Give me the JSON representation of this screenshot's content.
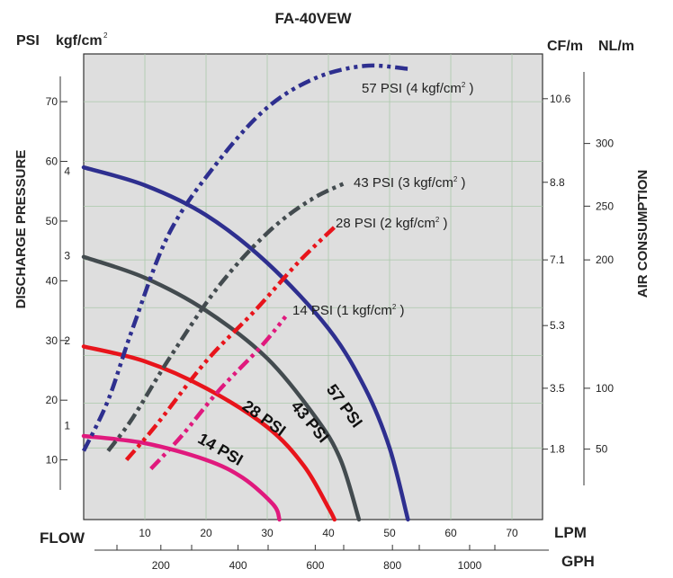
{
  "chart_data": {
    "type": "line",
    "title": "FA-40VEW",
    "left_axis": {
      "title": "DISCHARGE PRESSURE",
      "unit_psi": "PSI",
      "unit_kgf": "kgf/cm",
      "unit_kgf_sup": "2",
      "psi_ticks": [
        "10",
        "20",
        "30",
        "40",
        "50",
        "60",
        "70"
      ],
      "kgf_ticks": [
        "1",
        "2",
        "3",
        "4"
      ],
      "range_psi": [
        0,
        78
      ]
    },
    "right_axis": {
      "title": "AIR CONSUMPTION",
      "unit_cfm": "CF/m",
      "unit_nlm": "NL/m",
      "cfm_ticks": [
        "1.8",
        "3.5",
        "5.3",
        "7.1",
        "8.8",
        "10.6"
      ],
      "nlm_ticks": [
        "50",
        "100",
        "200",
        "250",
        "300"
      ]
    },
    "x_axis": {
      "label_left": "FLOW",
      "unit_lpm": "LPM",
      "unit_gph": "GPH",
      "lpm_ticks": [
        "10",
        "20",
        "30",
        "40",
        "50",
        "60",
        "70"
      ],
      "gph_ticks": [
        "200",
        "400",
        "600",
        "800",
        "1000"
      ],
      "range_lpm": [
        0,
        75
      ]
    },
    "flow_curves": [
      {
        "name": "57 PSI",
        "color": "#2e2f8f",
        "label": "57 PSI",
        "points": [
          [
            0,
            59
          ],
          [
            10,
            56
          ],
          [
            20,
            51
          ],
          [
            30,
            43
          ],
          [
            40,
            32
          ],
          [
            46,
            22
          ],
          [
            50,
            12
          ],
          [
            53,
            0
          ]
        ]
      },
      {
        "name": "43 PSI",
        "color": "#434b4f",
        "label": "43 PSI",
        "points": [
          [
            0,
            44
          ],
          [
            10,
            40.5
          ],
          [
            20,
            35
          ],
          [
            30,
            27
          ],
          [
            38,
            17
          ],
          [
            42,
            10
          ],
          [
            45,
            0
          ]
        ]
      },
      {
        "name": "28 PSI",
        "color": "#e8141b",
        "label": "28 PSI",
        "points": [
          [
            0,
            29
          ],
          [
            10,
            26.5
          ],
          [
            20,
            22
          ],
          [
            30,
            15.5
          ],
          [
            36,
            9
          ],
          [
            40,
            2
          ],
          [
            41,
            0
          ]
        ]
      },
      {
        "name": "14 PSI",
        "color": "#e0197d",
        "label": "14 PSI",
        "points": [
          [
            0,
            14
          ],
          [
            10,
            12.8
          ],
          [
            20,
            10
          ],
          [
            26,
            7
          ],
          [
            31,
            2.5
          ],
          [
            32,
            0
          ]
        ]
      }
    ],
    "air_curves": [
      {
        "name": "57 PSI (4 kgf/cm2)",
        "label_main": "57 PSI (4 kgf/cm",
        "label_sup": "2",
        "label_end": " )",
        "color": "#2e2f8f",
        "points": [
          [
            0,
            11.5
          ],
          [
            4,
            20
          ],
          [
            8,
            32
          ],
          [
            14,
            48
          ],
          [
            22,
            60
          ],
          [
            30,
            69
          ],
          [
            38,
            74
          ],
          [
            46,
            76
          ],
          [
            53,
            75.5
          ]
        ]
      },
      {
        "name": "43 PSI (3 kgf/cm2)",
        "label_main": "43 PSI (3 kgf/cm",
        "label_sup": "2",
        "label_end": " )",
        "color": "#434b4f",
        "points": [
          [
            4,
            11.5
          ],
          [
            8,
            17
          ],
          [
            14,
            27
          ],
          [
            22,
            39
          ],
          [
            30,
            48
          ],
          [
            37,
            53.5
          ],
          [
            43,
            56.5
          ]
        ]
      },
      {
        "name": "28 PSI (2 kgf/cm2)",
        "label_main": "28 PSI (2 kgf/cm",
        "label_sup": "2",
        "label_end": " )",
        "color": "#e8141b",
        "points": [
          [
            7,
            10
          ],
          [
            12,
            16
          ],
          [
            20,
            26.5
          ],
          [
            28,
            35
          ],
          [
            35,
            43
          ],
          [
            41,
            49
          ]
        ]
      },
      {
        "name": "14 PSI (1 kgf/cm2)",
        "label_main": "14 PSI (1 kgf/cm",
        "label_sup": "2",
        "label_end": " )",
        "color": "#e0197d",
        "points": [
          [
            11,
            8.5
          ],
          [
            16,
            14
          ],
          [
            22,
            21.5
          ],
          [
            29,
            29
          ],
          [
            33,
            34
          ]
        ]
      }
    ],
    "grid": true,
    "plot_background": "#dedede"
  }
}
